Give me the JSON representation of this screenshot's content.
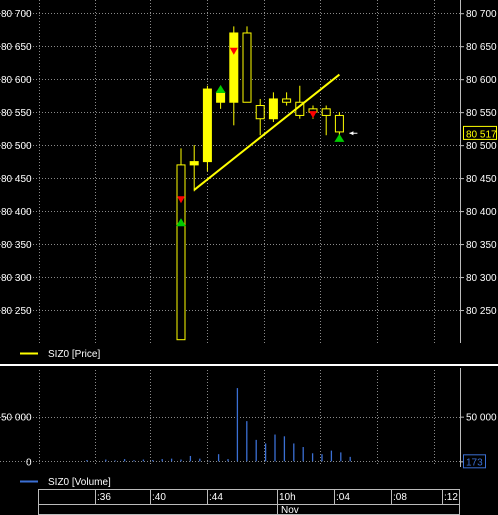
{
  "chart_data": [
    {
      "type": "candlestick",
      "series_name": "SIZ0 [Price]",
      "ylim": [
        80200,
        80720
      ],
      "yticks": [
        80250,
        80300,
        80350,
        80400,
        80450,
        80500,
        80550,
        80600,
        80650,
        80700
      ],
      "ytick_labels": [
        "80 250",
        "80 300",
        "80 350",
        "80 400",
        "80 450",
        "80 500",
        "80 550",
        "80 600",
        "80 650",
        "80 700"
      ],
      "last_price_label": "80 517",
      "last_price": 80517,
      "candles": [
        {
          "o": 80470,
          "h": 80495,
          "l": 80205,
          "c": 80205
        },
        {
          "o": 80470,
          "h": 80500,
          "l": 80430,
          "c": 80475
        },
        {
          "o": 80475,
          "h": 80590,
          "l": 80460,
          "c": 80585
        },
        {
          "o": 80565,
          "h": 80590,
          "l": 80555,
          "c": 80580
        },
        {
          "o": 80565,
          "h": 80680,
          "l": 80530,
          "c": 80670
        },
        {
          "o": 80670,
          "h": 80680,
          "l": 80565,
          "c": 80565
        },
        {
          "o": 80560,
          "h": 80570,
          "l": 80515,
          "c": 80540
        },
        {
          "o": 80540,
          "h": 80580,
          "l": 80535,
          "c": 80570
        },
        {
          "o": 80570,
          "h": 80580,
          "l": 80560,
          "c": 80565
        },
        {
          "o": 80565,
          "h": 80590,
          "l": 80540,
          "c": 80545
        },
        {
          "o": 80555,
          "h": 80560,
          "l": 80540,
          "c": 80550
        },
        {
          "o": 80555,
          "h": 80560,
          "l": 80515,
          "c": 80545
        },
        {
          "o": 80545,
          "h": 80550,
          "l": 80510,
          "c": 80520
        }
      ],
      "trendline": {
        "from": {
          "i": 1,
          "y": 80432
        },
        "to": {
          "i": 12,
          "y": 80607
        }
      },
      "buy_markers": [
        {
          "i": 0,
          "y": 80383
        },
        {
          "i": 3,
          "y": 80585
        },
        {
          "i": 12,
          "y": 80511
        }
      ],
      "sell_markers": [
        {
          "i": 0,
          "y": 80418
        },
        {
          "i": 4,
          "y": 80643
        },
        {
          "i": 10,
          "y": 80547
        }
      ],
      "last_tick": {
        "i": 12,
        "y": 80518
      }
    },
    {
      "type": "bar",
      "series_name": "SIZ0 [Volume]",
      "ylim": [
        -3000,
        100000
      ],
      "yticks": [
        0,
        50000
      ],
      "ytick_labels": [
        "0",
        "50 000"
      ],
      "last_value_label": "173",
      "bars": [
        {
          "x": 0,
          "v": 1500
        },
        {
          "x": 1,
          "v": 0
        },
        {
          "x": 2,
          "v": 2000
        },
        {
          "x": 3,
          "v": 1000
        },
        {
          "x": 4,
          "v": 2500
        },
        {
          "x": 5,
          "v": 1200
        },
        {
          "x": 6,
          "v": 2000
        },
        {
          "x": 7,
          "v": 1500
        },
        {
          "x": 8,
          "v": 2500
        },
        {
          "x": 9,
          "v": 3000
        },
        {
          "x": 10,
          "v": 2000
        },
        {
          "x": 11,
          "v": 6000
        },
        {
          "x": 12,
          "v": 3000
        },
        {
          "x": 13,
          "v": 500
        },
        {
          "x": 14,
          "v": 8000
        },
        {
          "x": 15,
          "v": 2500
        },
        {
          "x": 16,
          "v": 82000
        },
        {
          "x": 17,
          "v": 45000
        },
        {
          "x": 18,
          "v": 24000
        },
        {
          "x": 19,
          "v": 20000
        },
        {
          "x": 20,
          "v": 30000
        },
        {
          "x": 21,
          "v": 28000
        },
        {
          "x": 22,
          "v": 20000
        },
        {
          "x": 23,
          "v": 16000
        },
        {
          "x": 24,
          "v": 9000
        },
        {
          "x": 25,
          "v": 8000
        },
        {
          "x": 26,
          "v": 12000
        },
        {
          "x": 27,
          "v": 10000
        },
        {
          "x": 28,
          "v": 5000
        }
      ]
    }
  ],
  "time_axis": {
    "ticks": [
      ":36",
      ":40",
      ":44",
      "10h",
      ":04",
      ":08",
      ":12"
    ],
    "date_label": "Nov"
  },
  "colors": {
    "background": "#000000",
    "grid": "#8a8a8a",
    "candle": "#ffff00",
    "trendline": "#ffff00",
    "buy": "#00cc00",
    "sell": "#ff0000",
    "volume": "#3b6fd4",
    "legend_price": "#ffff00",
    "legend_volume": "#3b6fd4",
    "text": "#ffffff"
  }
}
